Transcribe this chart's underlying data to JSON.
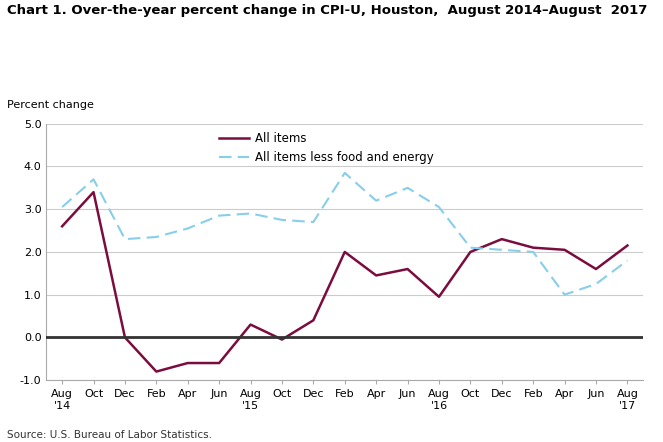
{
  "title": "Chart 1. Over-the-year percent change in CPI-U, Houston,  August 2014–August  2017",
  "percent_change_label": "Percent change",
  "source": "Source: U.S. Bureau of Labor Statistics.",
  "ylim": [
    -1.0,
    5.0
  ],
  "yticks": [
    -1.0,
    0.0,
    1.0,
    2.0,
    3.0,
    4.0,
    5.0
  ],
  "x_labels": [
    "Aug\n'14",
    "Oct",
    "Dec",
    "Feb",
    "Apr",
    "Jun",
    "Aug\n'15",
    "Oct",
    "Dec",
    "Feb",
    "Apr",
    "Jun",
    "Aug\n'16",
    "Oct",
    "Dec",
    "Feb",
    "Apr",
    "Jun",
    "Aug\n'17"
  ],
  "all_items": [
    2.6,
    3.4,
    0.0,
    -0.8,
    -0.6,
    -0.6,
    0.3,
    -0.05,
    0.4,
    2.0,
    1.45,
    1.6,
    0.95,
    2.0,
    2.3,
    2.1,
    2.05,
    1.6,
    2.15
  ],
  "all_items_less": [
    3.05,
    3.7,
    2.3,
    2.35,
    2.55,
    2.85,
    2.9,
    2.75,
    2.7,
    3.85,
    3.2,
    3.5,
    3.05,
    2.1,
    2.05,
    2.0,
    1.0,
    1.25,
    1.8
  ],
  "all_items_color": "#7b0d3e",
  "all_items_less_color": "#87ceeb",
  "background_color": "#ffffff",
  "grid_color": "#cccccc",
  "zero_line_color": "#333333",
  "legend_labels": [
    "All items",
    "All items less food and energy"
  ]
}
